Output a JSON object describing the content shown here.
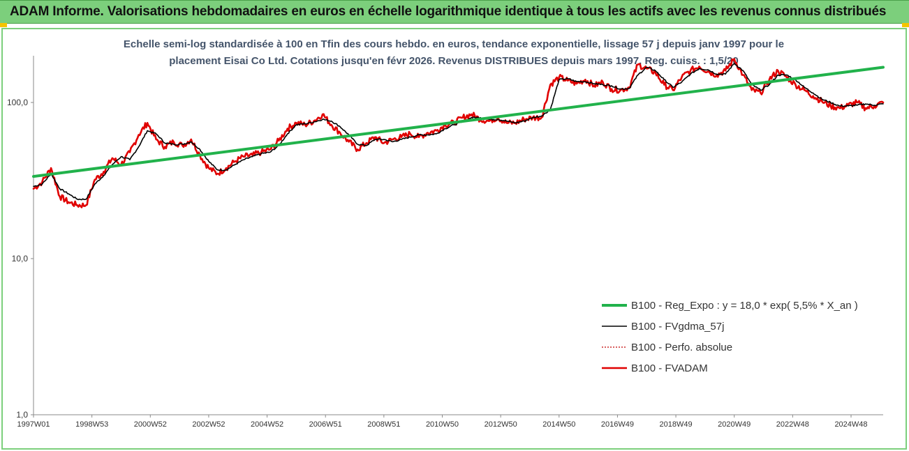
{
  "banner": {
    "title": "ADAM Informe. Valorisations hebdomadaires en euros en échelle logarithmique identique à tous les actifs avec les revenus connus distribués"
  },
  "colors": {
    "banner_bg": "#7ccf7c",
    "banner_corner": "#f5c400",
    "trend": "#21b24b",
    "smooth": "#000000",
    "absolute": "#c00000",
    "fvadam": "#e00000"
  },
  "chart_data": {
    "type": "line",
    "subtitle_line1": "Echelle semi-log standardisée à 100 en Tfin des cours hebdo. en euros, tendance exponentielle, lissage 57 j depuis janv 1997 pour le",
    "subtitle_line2": "placement Eisai Co Ltd. Cotations jusqu'en févr 2026. Revenus DISTRIBUES depuis mars 1997. Reg. cuiss. : 1,5/20",
    "y_scale": "log",
    "ylim": [
      1,
      200
    ],
    "y_ticks": [
      {
        "value": 1,
        "label": "1,0"
      },
      {
        "value": 10,
        "label": "10,0"
      },
      {
        "value": 100,
        "label": "100,0"
      }
    ],
    "xlim": [
      1997.0,
      2026.1
    ],
    "x_ticks": [
      {
        "x": 1997.0,
        "label": "1997W01"
      },
      {
        "x": 1999.0,
        "label": "1998W53"
      },
      {
        "x": 2001.0,
        "label": "2000W52"
      },
      {
        "x": 2003.0,
        "label": "2002W52"
      },
      {
        "x": 2005.0,
        "label": "2004W52"
      },
      {
        "x": 2007.0,
        "label": "2006W51"
      },
      {
        "x": 2009.0,
        "label": "2008W51"
      },
      {
        "x": 2011.0,
        "label": "2010W50"
      },
      {
        "x": 2013.0,
        "label": "2012W50"
      },
      {
        "x": 2015.0,
        "label": "2014W50"
      },
      {
        "x": 2017.0,
        "label": "2016W49"
      },
      {
        "x": 2019.0,
        "label": "2018W49"
      },
      {
        "x": 2021.0,
        "label": "2020W49"
      },
      {
        "x": 2023.0,
        "label": "2022W48"
      },
      {
        "x": 2025.0,
        "label": "2024W48"
      }
    ],
    "legend_position": "bottom-right",
    "series": [
      {
        "name": "B100 - Reg_Expo : y = 18,0 * exp( 5,5% *  X_an )",
        "key": "trend",
        "style": "thick",
        "x": [
          1997.0,
          2026.1
        ],
        "values": [
          33.6,
          168
        ]
      },
      {
        "name": "B100 - FVgdma_57j",
        "key": "smooth",
        "style": "thin",
        "x": [
          1997.0,
          1997.3,
          1997.6,
          1997.9,
          1998.2,
          1998.5,
          1998.8,
          1999.1,
          1999.4,
          1999.7,
          2000.0,
          2000.3,
          2000.6,
          2000.9,
          2001.2,
          2001.5,
          2001.8,
          2002.1,
          2002.4,
          2002.7,
          2003.0,
          2003.3,
          2003.6,
          2003.9,
          2004.2,
          2004.5,
          2004.8,
          2005.1,
          2005.4,
          2005.7,
          2006.0,
          2006.3,
          2006.6,
          2006.9,
          2007.2,
          2007.5,
          2007.8,
          2008.1,
          2008.4,
          2008.7,
          2009.0,
          2009.3,
          2009.6,
          2009.9,
          2010.2,
          2010.5,
          2010.8,
          2011.1,
          2011.4,
          2011.7,
          2012.0,
          2012.3,
          2012.6,
          2012.9,
          2013.2,
          2013.5,
          2013.8,
          2014.1,
          2014.4,
          2014.7,
          2015.0,
          2015.3,
          2015.6,
          2015.9,
          2016.2,
          2016.5,
          2016.8,
          2017.1,
          2017.4,
          2017.7,
          2018.0,
          2018.3,
          2018.6,
          2018.9,
          2019.2,
          2019.5,
          2019.8,
          2020.1,
          2020.4,
          2020.7,
          2021.0,
          2021.3,
          2021.6,
          2021.9,
          2022.2,
          2022.5,
          2022.8,
          2023.1,
          2023.4,
          2023.7,
          2024.0,
          2024.3,
          2024.6,
          2024.9,
          2025.2,
          2025.5,
          2025.8,
          2026.1
        ],
        "values": [
          29,
          30,
          35,
          28,
          26,
          24,
          24,
          30,
          34,
          40,
          45,
          43,
          52,
          66,
          63,
          55,
          54,
          54,
          56,
          50,
          42,
          37,
          37,
          40,
          43,
          45,
          47,
          48,
          53,
          63,
          72,
          73,
          75,
          78,
          76,
          70,
          62,
          54,
          53,
          58,
          58,
          56,
          58,
          60,
          62,
          62,
          63,
          68,
          72,
          75,
          80,
          80,
          78,
          78,
          76,
          74,
          76,
          80,
          82,
          90,
          140,
          142,
          136,
          136,
          132,
          130,
          128,
          122,
          123,
          150,
          168,
          160,
          140,
          125,
          135,
          152,
          165,
          162,
          152,
          152,
          178,
          160,
          130,
          120,
          130,
          150,
          150,
          140,
          125,
          115,
          105,
          100,
          95,
          95,
          96,
          98,
          96,
          98
        ]
      },
      {
        "name": "B100 - Perfo. absolue",
        "key": "absolute",
        "style": "dotted",
        "x": [],
        "values": []
      },
      {
        "name": "B100 - FVADAM",
        "key": "fvadam",
        "style": "thick",
        "x": [
          1997.0,
          1997.3,
          1997.6,
          1997.9,
          1998.2,
          1998.5,
          1998.8,
          1999.1,
          1999.4,
          1999.7,
          2000.0,
          2000.3,
          2000.6,
          2000.9,
          2001.2,
          2001.5,
          2001.8,
          2002.1,
          2002.4,
          2002.7,
          2003.0,
          2003.3,
          2003.6,
          2003.9,
          2004.2,
          2004.5,
          2004.8,
          2005.1,
          2005.4,
          2005.7,
          2006.0,
          2006.3,
          2006.6,
          2006.9,
          2007.2,
          2007.5,
          2007.8,
          2008.1,
          2008.4,
          2008.7,
          2009.0,
          2009.3,
          2009.6,
          2009.9,
          2010.2,
          2010.5,
          2010.8,
          2011.1,
          2011.4,
          2011.7,
          2012.0,
          2012.3,
          2012.6,
          2012.9,
          2013.2,
          2013.5,
          2013.8,
          2014.1,
          2014.4,
          2014.7,
          2015.0,
          2015.3,
          2015.6,
          2015.9,
          2016.2,
          2016.5,
          2016.8,
          2017.1,
          2017.4,
          2017.7,
          2018.0,
          2018.3,
          2018.6,
          2018.9,
          2019.2,
          2019.5,
          2019.8,
          2020.1,
          2020.4,
          2020.7,
          2021.0,
          2021.3,
          2021.6,
          2021.9,
          2022.2,
          2022.5,
          2022.8,
          2023.1,
          2023.4,
          2023.7,
          2024.0,
          2024.3,
          2024.6,
          2024.9,
          2025.2,
          2025.5,
          2025.8,
          2026.1
        ],
        "values": [
          28,
          31,
          38,
          25,
          23,
          22,
          22,
          32,
          36,
          44,
          40,
          48,
          62,
          74,
          58,
          52,
          56,
          53,
          58,
          46,
          38,
          35,
          38,
          42,
          45,
          46,
          48,
          50,
          57,
          68,
          74,
          72,
          76,
          84,
          72,
          64,
          56,
          50,
          55,
          60,
          55,
          58,
          60,
          63,
          60,
          64,
          66,
          72,
          74,
          80,
          84,
          78,
          76,
          80,
          74,
          74,
          78,
          80,
          80,
          130,
          145,
          138,
          132,
          140,
          128,
          135,
          122,
          120,
          125,
          175,
          165,
          155,
          130,
          120,
          145,
          160,
          170,
          158,
          150,
          160,
          190,
          150,
          120,
          115,
          140,
          160,
          145,
          130,
          120,
          110,
          102,
          95,
          92,
          96,
          100,
          92,
          95,
          100
        ]
      }
    ]
  }
}
